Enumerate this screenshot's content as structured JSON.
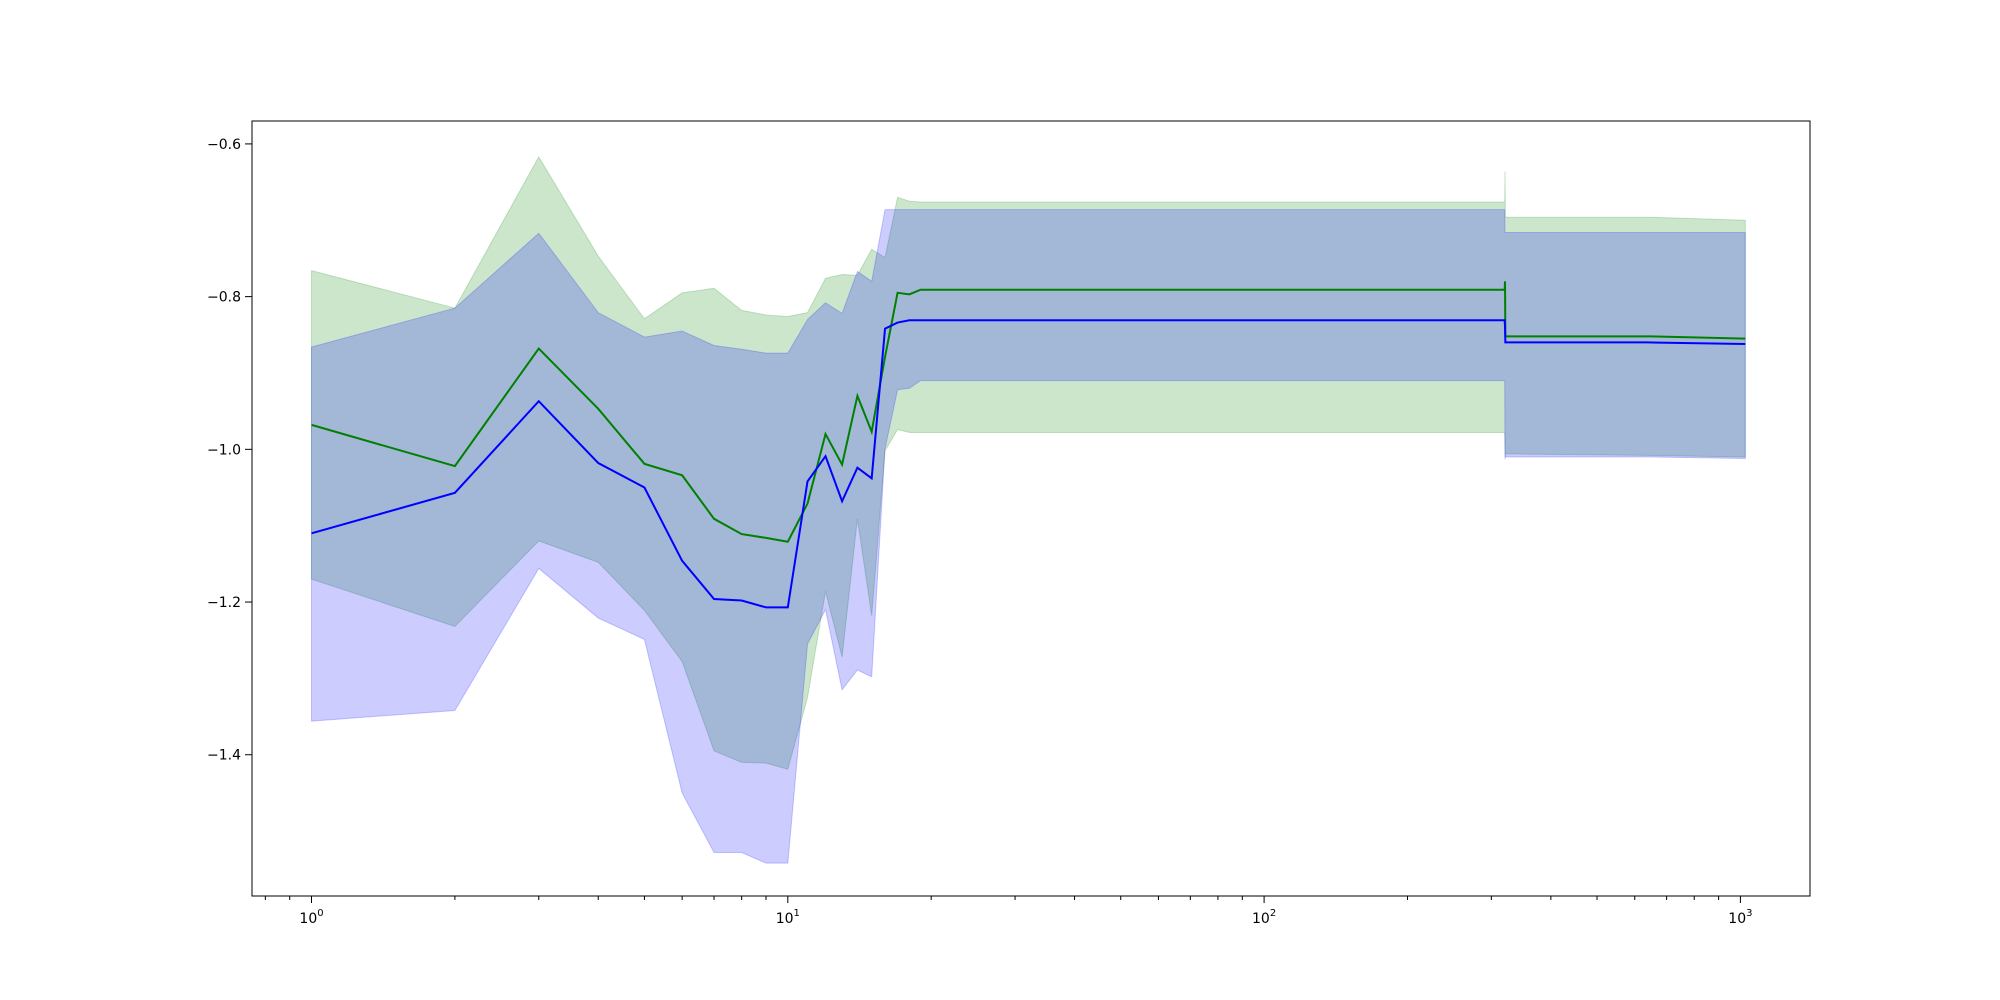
{
  "chart_data": {
    "type": "line",
    "xscale": "log",
    "xlim": [
      0.75,
      1400
    ],
    "ylim": [
      -1.585,
      -0.57
    ],
    "grid": false,
    "legend": "none",
    "title": "",
    "xlabel": "",
    "ylabel": "",
    "xticks": [
      {
        "value": 1,
        "base": "10",
        "exp": "0"
      },
      {
        "value": 10,
        "base": "10",
        "exp": "1"
      },
      {
        "value": 100,
        "base": "10",
        "exp": "2"
      },
      {
        "value": 1000,
        "base": "10",
        "exp": "3"
      }
    ],
    "yticks": [
      {
        "value": -0.6,
        "label": "−0.6"
      },
      {
        "value": -0.8,
        "label": "−0.8"
      },
      {
        "value": -1.0,
        "label": "−1.0"
      },
      {
        "value": -1.2,
        "label": "−1.2"
      },
      {
        "value": -1.4,
        "label": "−1.4"
      }
    ],
    "series": [
      {
        "color": "#008000",
        "band_color": "#008000",
        "band_opacity": 0.2,
        "x": [
          1,
          2,
          3,
          4,
          5,
          6,
          7,
          8,
          9,
          10,
          11,
          12,
          13,
          14,
          15,
          16,
          17,
          18,
          19,
          320,
          320.5,
          321,
          640,
          1024
        ],
        "mean": [
          -0.968,
          -1.022,
          -0.868,
          -0.947,
          -1.019,
          -1.034,
          -1.091,
          -1.111,
          -1.116,
          -1.121,
          -1.071,
          -0.98,
          -1.02,
          -0.93,
          -0.977,
          -0.879,
          -0.795,
          -0.797,
          -0.791,
          -0.791,
          -0.78,
          -0.852,
          -0.852,
          -0.855
        ],
        "upper": [
          -0.766,
          -0.815,
          -0.617,
          -0.747,
          -0.829,
          -0.795,
          -0.789,
          -0.818,
          -0.824,
          -0.826,
          -0.821,
          -0.776,
          -0.771,
          -0.772,
          -0.738,
          -0.749,
          -0.67,
          -0.675,
          -0.676,
          -0.676,
          -0.636,
          -0.696,
          -0.696,
          -0.7
        ],
        "lower": [
          -1.17,
          -1.232,
          -1.12,
          -1.148,
          -1.211,
          -1.278,
          -1.395,
          -1.41,
          -1.411,
          -1.419,
          -1.325,
          -1.186,
          -1.272,
          -1.091,
          -1.218,
          -1.002,
          -0.974,
          -0.978,
          -0.978,
          -0.978,
          -1.01,
          -1.006,
          -1.008,
          -1.01
        ]
      },
      {
        "color": "#0000ff",
        "band_color": "#0000ff",
        "band_opacity": 0.2,
        "x": [
          1,
          2,
          3,
          4,
          5,
          6,
          7,
          8,
          9,
          10,
          11,
          12,
          13,
          14,
          15,
          16,
          17,
          18,
          19,
          320,
          320.5,
          321,
          640,
          1024
        ],
        "mean": [
          -1.11,
          -1.057,
          -0.937,
          -1.018,
          -1.05,
          -1.146,
          -1.196,
          -1.198,
          -1.207,
          -1.207,
          -1.042,
          -1.009,
          -1.068,
          -1.024,
          -1.038,
          -0.842,
          -0.834,
          -0.831,
          -0.831,
          -0.831,
          -0.84,
          -0.86,
          -0.86,
          -0.862
        ],
        "upper": [
          -0.866,
          -0.815,
          -0.717,
          -0.821,
          -0.853,
          -0.845,
          -0.864,
          -0.869,
          -0.874,
          -0.874,
          -0.83,
          -0.808,
          -0.822,
          -0.767,
          -0.78,
          -0.686,
          -0.686,
          -0.686,
          -0.686,
          -0.686,
          -0.716,
          -0.716,
          -0.716,
          -0.716
        ],
        "lower": [
          -1.356,
          -1.342,
          -1.156,
          -1.221,
          -1.249,
          -1.45,
          -1.528,
          -1.528,
          -1.542,
          -1.542,
          -1.255,
          -1.21,
          -1.315,
          -1.289,
          -1.298,
          -0.999,
          -0.922,
          -0.92,
          -0.91,
          -0.91,
          -1.013,
          -1.01,
          -1.01,
          -1.012
        ]
      }
    ]
  }
}
